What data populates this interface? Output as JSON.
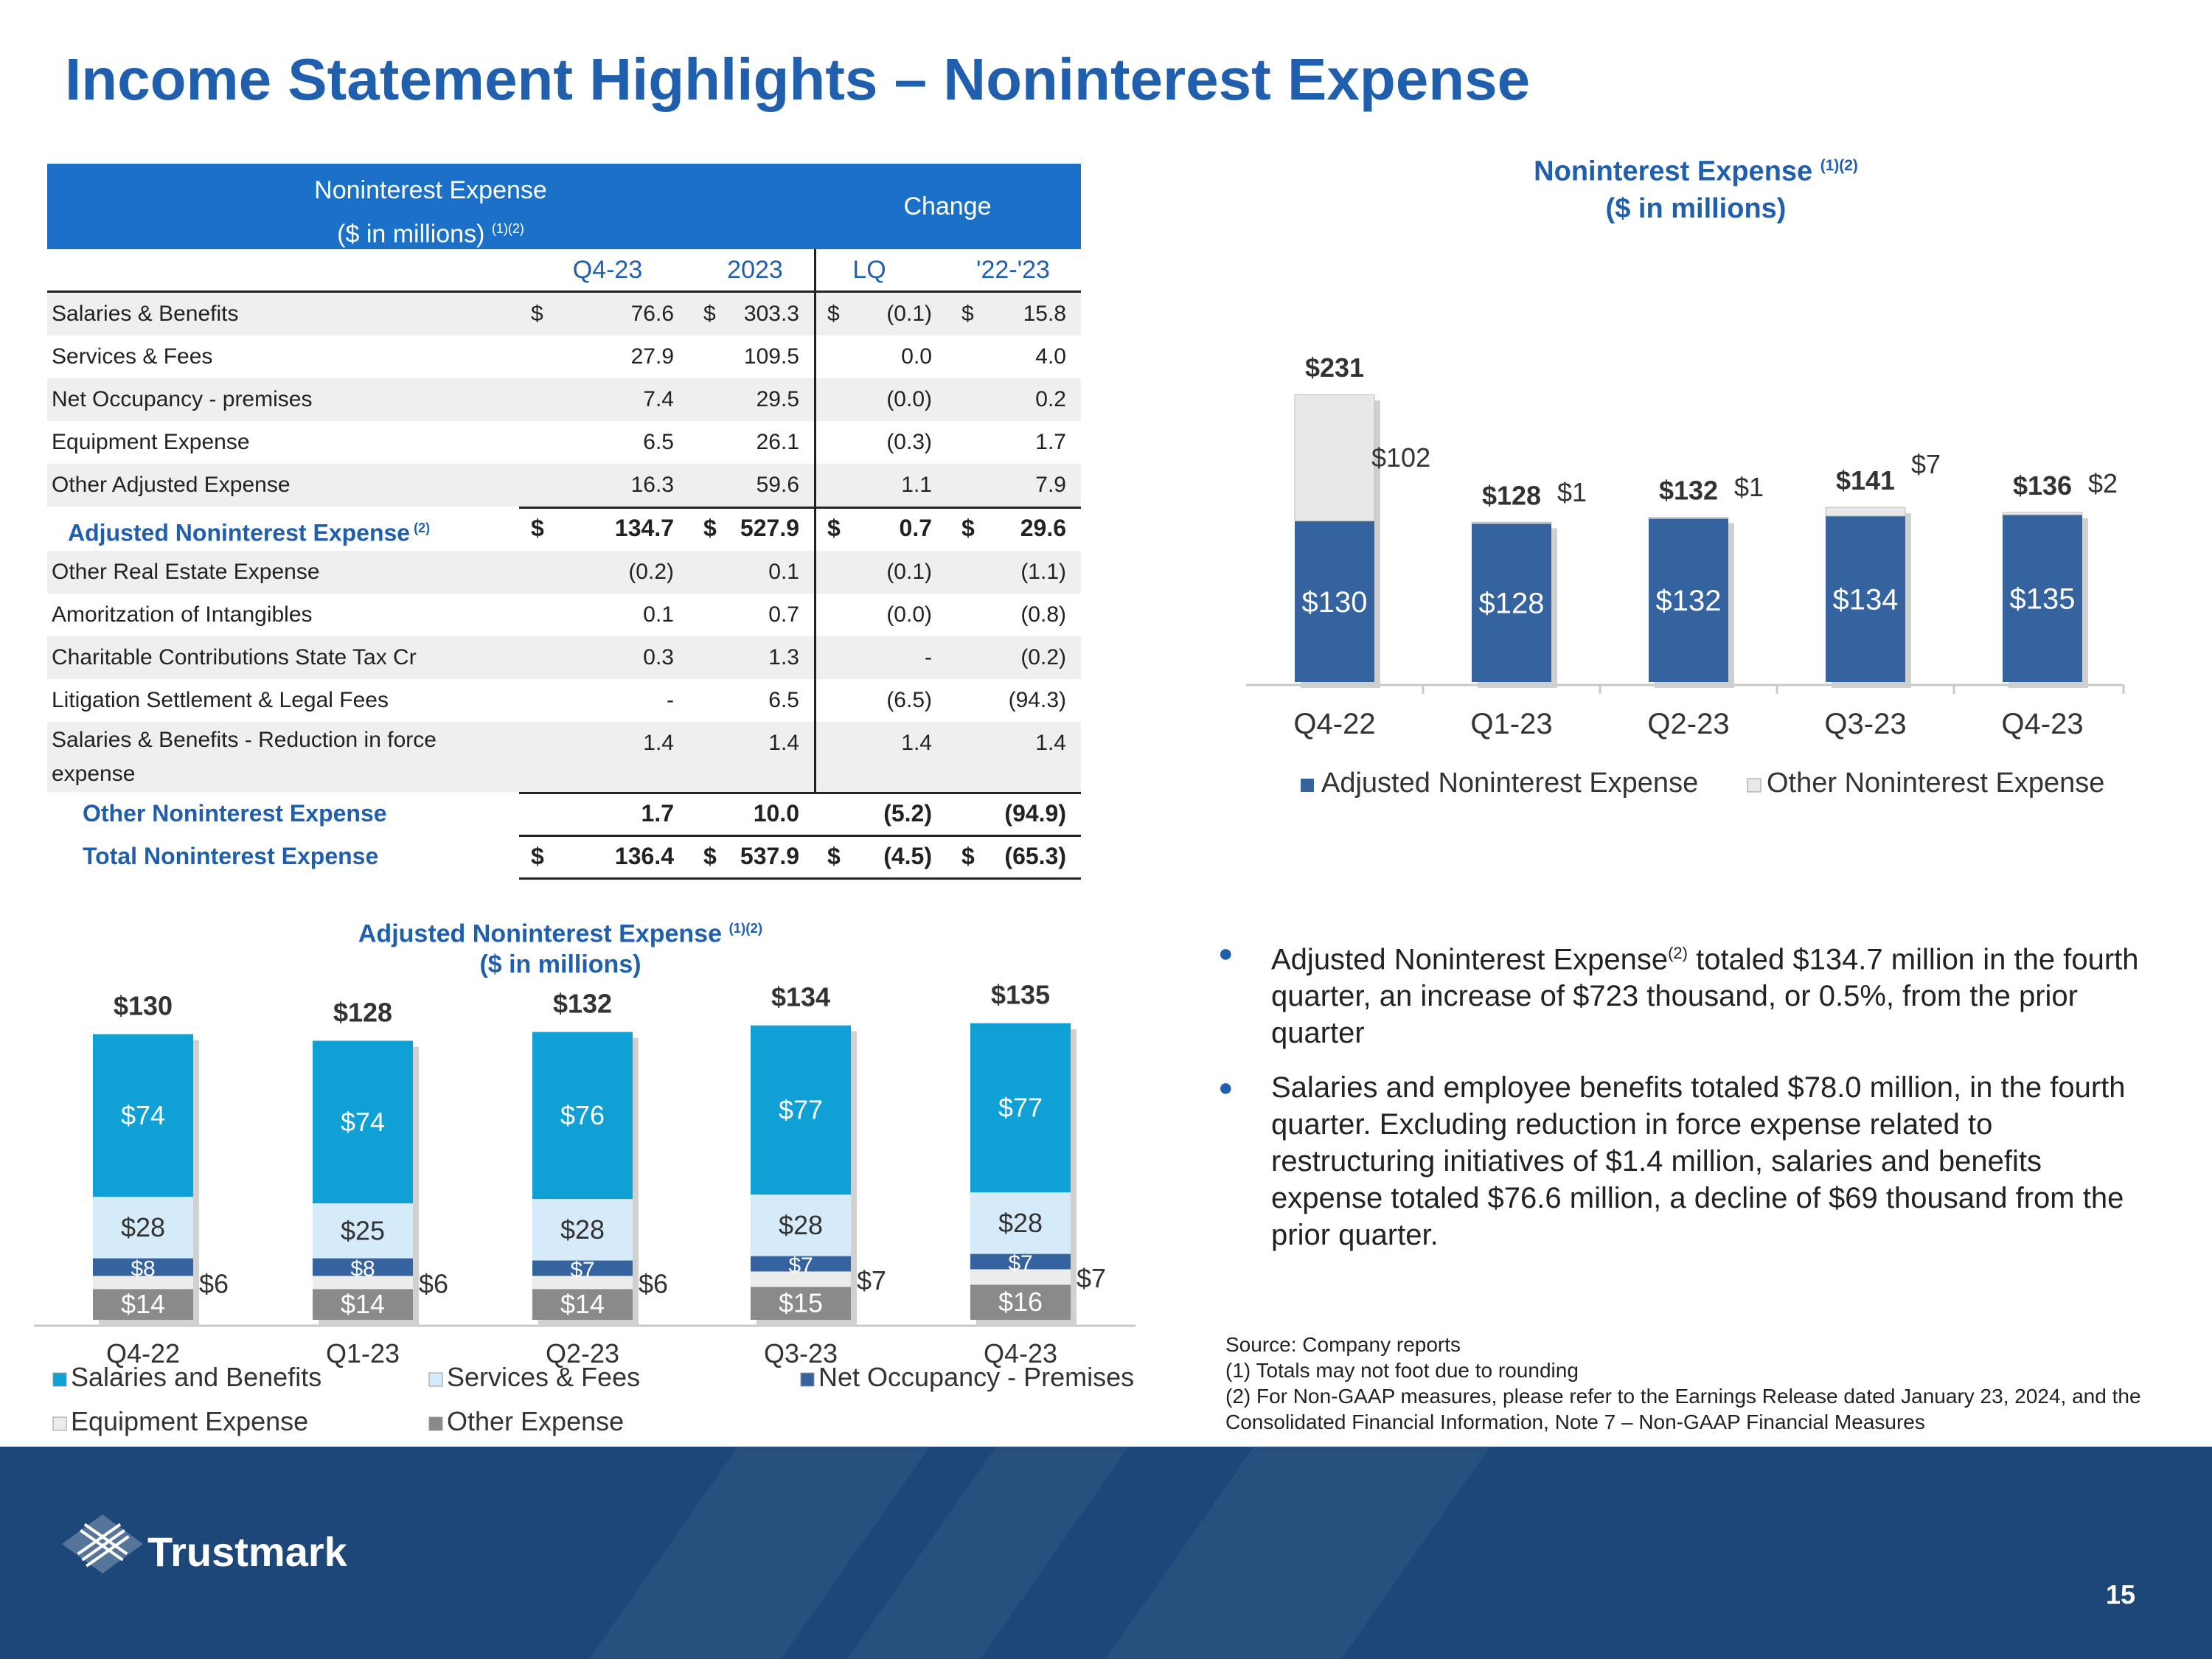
{
  "title": "Income Statement Highlights – Noninterest Expense",
  "table": {
    "header_line1": "Noninterest Expense",
    "header_line2": "($ in millions)",
    "header_sup": "(1)(2)",
    "change_header": "Change",
    "col_q": "Q4-23",
    "col_y": "2023",
    "col_lq": "LQ",
    "col_yy": "'22-'23",
    "rows": [
      {
        "label": "Salaries & Benefits",
        "d1": "$",
        "q": "76.6",
        "d2": "$",
        "y": "303.3",
        "d3": "$",
        "lq": "(0.1)",
        "d4": "$",
        "yy": "15.8"
      },
      {
        "label": "Services & Fees",
        "q": "27.9",
        "y": "109.5",
        "lq": "0.0",
        "yy": "4.0"
      },
      {
        "label": "Net Occupancy - premises",
        "q": "7.4",
        "y": "29.5",
        "lq": "(0.0)",
        "yy": "0.2"
      },
      {
        "label": "Equipment Expense",
        "q": "6.5",
        "y": "26.1",
        "lq": "(0.3)",
        "yy": "1.7"
      },
      {
        "label": "Other Adjusted Expense",
        "q": "16.3",
        "y": "59.6",
        "lq": "1.1",
        "yy": "7.9"
      },
      {
        "label": "Adjusted Noninterest Expense",
        "sup": "(2)",
        "d1": "$",
        "q": "134.7",
        "d2": "$",
        "y": "527.9",
        "d3": "$",
        "lq": "0.7",
        "d4": "$",
        "yy": "29.6"
      },
      {
        "label": "Other Real Estate Expense",
        "q": "(0.2)",
        "y": "0.1",
        "lq": "(0.1)",
        "yy": "(1.1)"
      },
      {
        "label": "Amoritzation of Intangibles",
        "q": "0.1",
        "y": "0.7",
        "lq": "(0.0)",
        "yy": "(0.8)"
      },
      {
        "label": "Charitable Contributions State Tax Cr",
        "q": "0.3",
        "y": "1.3",
        "lq": "-",
        "yy": "(0.2)"
      },
      {
        "label": "Litigation Settlement & Legal Fees",
        "q": "-",
        "y": "6.5",
        "lq": "(6.5)",
        "yy": "(94.3)"
      },
      {
        "label": "Salaries & Benefits - Reduction in force",
        "label2": "expense",
        "q": "1.4",
        "y": "1.4",
        "lq": "1.4",
        "yy": "1.4"
      },
      {
        "label": "Other Noninterest Expense",
        "q": "1.7",
        "y": "10.0",
        "lq": "(5.2)",
        "yy": "(94.9)"
      },
      {
        "label": "Total Noninterest Expense",
        "d1": "$",
        "q": "136.4",
        "d2": "$",
        "y": "537.9",
        "d3": "$",
        "lq": "(4.5)",
        "d4": "$",
        "yy": "(65.3)"
      }
    ]
  },
  "chart_data": [
    {
      "type": "bar",
      "stacked": true,
      "title": "Noninterest Expense",
      "title_sup": "(1)(2)",
      "subtitle": "($ in millions)",
      "categories": [
        "Q4-22",
        "Q1-23",
        "Q2-23",
        "Q3-23",
        "Q4-23"
      ],
      "series": [
        {
          "name": "Adjusted Noninterest Expense",
          "values": [
            130,
            128,
            132,
            134,
            135
          ],
          "labels": [
            "$130",
            "$128",
            "$132",
            "$134",
            "$135"
          ],
          "color": "#3563a0"
        },
        {
          "name": "Other Noninterest Expense",
          "values": [
            102,
            1,
            1,
            7,
            2
          ],
          "labels": [
            "$102",
            "$1",
            "$1",
            "$7",
            "$2"
          ],
          "color": "#e8e8e8"
        }
      ],
      "totals": [
        "$231",
        "$128",
        "$132",
        "$141",
        "$136"
      ],
      "legend_position": "bottom"
    },
    {
      "type": "bar",
      "stacked": true,
      "title": "Adjusted Noninterest Expense",
      "title_sup": "(1)(2)",
      "subtitle": "($ in millions)",
      "categories": [
        "Q4-22",
        "Q1-23",
        "Q2-23",
        "Q3-23",
        "Q4-23"
      ],
      "series": [
        {
          "name": "Other Expense",
          "values": [
            14,
            14,
            14,
            15,
            16
          ],
          "labels": [
            "$14",
            "$14",
            "$14",
            "$15",
            "$16"
          ],
          "color": "#8a8a8a"
        },
        {
          "name": "Equipment Expense",
          "values": [
            6,
            6,
            6,
            7,
            7
          ],
          "labels": [
            "$6",
            "$6",
            "$6",
            "$7",
            "$7"
          ],
          "color": "#ececec"
        },
        {
          "name": "Net Occupancy - Premises",
          "values": [
            8,
            8,
            7,
            7,
            7
          ],
          "labels": [
            "$8",
            "$8",
            "$7",
            "$7",
            "$7"
          ],
          "color": "#3563a0"
        },
        {
          "name": "Services & Fees",
          "values": [
            28,
            25,
            28,
            28,
            28
          ],
          "labels": [
            "$28",
            "$25",
            "$28",
            "$28",
            "$28"
          ],
          "color": "#d6ebfa"
        },
        {
          "name": "Salaries and Benefits",
          "values": [
            74,
            74,
            76,
            77,
            77
          ],
          "labels": [
            "$74",
            "$74",
            "$76",
            "$77",
            "$77"
          ],
          "color": "#0fa0d6"
        }
      ],
      "totals": [
        "$130",
        "$128",
        "$132",
        "$134",
        "$135"
      ],
      "legend_order": [
        "Salaries and Benefits",
        "Services & Fees",
        "Net Occupancy - Premises",
        "Equipment Expense",
        "Other Expense"
      ],
      "legend_position": "bottom"
    }
  ],
  "bullets": [
    {
      "pre": "Adjusted Noninterest Expense",
      "sup": "(2)",
      "post": " totaled $134.7 million in the fourth quarter, an increase of $723 thousand, or 0.5%, from the prior quarter"
    },
    {
      "pre": "Salaries and employee benefits totaled $78.0 million, in the fourth quarter.  Excluding reduction in force expense related to restructuring initiatives of $1.4 million, salaries and benefits expense totaled $76.6 million, a decline of $69 thousand from the prior quarter.",
      "sup": "",
      "post": ""
    }
  ],
  "notes": [
    "Source: Company reports",
    "(1) Totals may not foot due to rounding",
    "(2) For Non-GAAP measures, please refer to the Earnings Release dated January 23, 2024, and the Consolidated Financial Information, Note 7 – Non-GAAP Financial Measures"
  ],
  "footer": {
    "brand": "Trustmark",
    "page": "15"
  },
  "colors": {
    "title_blue": "#1f5fae",
    "header_blue": "#1a71c7",
    "footer_navy": "#1d4779"
  }
}
